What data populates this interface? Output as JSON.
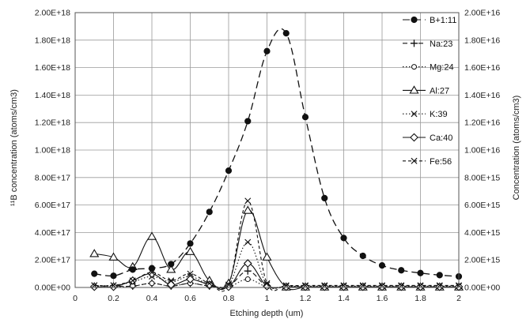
{
  "chart_data": {
    "type": "line",
    "xlabel": "Etching depth (um)",
    "ylabel_left": "¹¹B concentration (atoms/cm3)",
    "ylabel_right": "Concentration (atoms/cm3)",
    "xlim": [
      0,
      2
    ],
    "x_ticks": [
      "0",
      "0.2",
      "0.4",
      "0.6",
      "0.8",
      "1",
      "1.2",
      "1.4",
      "1.6",
      "1.8",
      "2"
    ],
    "ylim_left": [
      0,
      2e+18
    ],
    "ylim_right": [
      0,
      2e+16
    ],
    "y_ticks_left": [
      "0.00E+00",
      "2.00E+17",
      "4.00E+17",
      "6.00E+17",
      "8.00E+17",
      "1.00E+18",
      "1.20E+18",
      "1.40E+18",
      "1.60E+18",
      "1.80E+18",
      "2.00E+18"
    ],
    "y_ticks_right": [
      "0.00E+00",
      "2.00E+15",
      "4.00E+15",
      "6.00E+15",
      "8.00E+15",
      "1.00E+16",
      "1.20E+16",
      "1.40E+16",
      "1.60E+16",
      "1.80E+16",
      "2.00E+16"
    ],
    "grid": "vertical and horizontal",
    "legend_position": "right, inside plot",
    "series": [
      {
        "name": "B+1:11",
        "axis": "left",
        "marker": "filled-circle",
        "line": "long-dash",
        "x": [
          0.1,
          0.2,
          0.3,
          0.4,
          0.5,
          0.6,
          0.7,
          0.8,
          0.9,
          1.0,
          1.1,
          1.2,
          1.3,
          1.4,
          1.5,
          1.6,
          1.7,
          1.8,
          1.9,
          2.0
        ],
        "y": [
          1e+17,
          8.5e+16,
          1.3e+17,
          1.4e+17,
          1.7e+17,
          3.2e+17,
          5.5e+17,
          8.5e+17,
          1.21e+18,
          1.72e+18,
          1.85e+18,
          1.24e+18,
          6.5e+17,
          3.6e+17,
          2.3e+17,
          1.6e+17,
          1.25e+17,
          1.05e+17,
          9e+16,
          8e+16
        ]
      },
      {
        "name": "Na:23",
        "axis": "right",
        "marker": "plus",
        "line": "dash",
        "x": [
          0.1,
          0.2,
          0.3,
          0.4,
          0.5,
          0.6,
          0.7,
          0.8,
          0.9,
          1.0,
          1.1,
          1.2,
          1.3,
          1.4,
          1.5,
          1.6,
          1.7,
          1.8,
          1.9,
          2.0
        ],
        "y": [
          100000000000000.0,
          100000000000000.0,
          100000000000000.0,
          300000000000000.0,
          100000000000000.0,
          300000000000000.0,
          100000000000000.0,
          100000000000000.0,
          1200000000000000.0,
          100000000000000.0,
          50000000000000.0,
          50000000000000.0,
          50000000000000.0,
          50000000000000.0,
          50000000000000.0,
          50000000000000.0,
          50000000000000.0,
          50000000000000.0,
          50000000000000.0,
          50000000000000.0
        ]
      },
      {
        "name": "Mg:24",
        "axis": "right",
        "marker": "open-circle",
        "line": "dotted",
        "x": [
          0.1,
          0.2,
          0.3,
          0.4,
          0.5,
          0.6,
          0.7,
          0.8,
          0.9,
          1.0,
          1.1,
          1.2,
          1.3,
          1.4,
          1.5,
          1.6,
          1.7,
          1.8,
          1.9,
          2.0
        ],
        "y": [
          50000000000000.0,
          50000000000000.0,
          100000000000000.0,
          300000000000000.0,
          100000000000000.0,
          300000000000000.0,
          100000000000000.0,
          50000000000000.0,
          600000000000000.0,
          50000000000000.0,
          30000000000000.0,
          30000000000000.0,
          30000000000000.0,
          30000000000000.0,
          30000000000000.0,
          30000000000000.0,
          30000000000000.0,
          30000000000000.0,
          30000000000000.0,
          30000000000000.0
        ]
      },
      {
        "name": "Al:27",
        "axis": "right",
        "marker": "open-triangle",
        "line": "solid",
        "x": [
          0.1,
          0.2,
          0.3,
          0.4,
          0.5,
          0.6,
          0.7,
          0.8,
          0.9,
          1.0,
          1.1,
          1.2,
          1.3,
          1.4,
          1.5,
          1.6,
          1.7,
          1.8,
          1.9,
          2.0
        ],
        "y": [
          2450000000000000.0,
          2200000000000000.0,
          1500000000000000.0,
          3700000000000000.0,
          1300000000000000.0,
          2600000000000000.0,
          500000000000000.0,
          300000000000000.0,
          5600000000000000.0,
          2200000000000000.0,
          20000000000000.0,
          20000000000000.0,
          20000000000000.0,
          20000000000000.0,
          20000000000000.0,
          20000000000000.0,
          20000000000000.0,
          20000000000000.0,
          20000000000000.0,
          20000000000000.0
        ]
      },
      {
        "name": "K:39",
        "axis": "right",
        "marker": "x",
        "line": "dotted",
        "x": [
          0.1,
          0.2,
          0.3,
          0.4,
          0.5,
          0.6,
          0.7,
          0.8,
          0.9,
          1.0,
          1.1,
          1.2,
          1.3,
          1.4,
          1.5,
          1.6,
          1.7,
          1.8,
          1.9,
          2.0
        ],
        "y": [
          150000000000000.0,
          150000000000000.0,
          400000000000000.0,
          800000000000000.0,
          400000000000000.0,
          800000000000000.0,
          200000000000000.0,
          150000000000000.0,
          3300000000000000.0,
          200000000000000.0,
          100000000000000.0,
          100000000000000.0,
          100000000000000.0,
          100000000000000.0,
          100000000000000.0,
          100000000000000.0,
          100000000000000.0,
          100000000000000.0,
          100000000000000.0,
          100000000000000.0
        ]
      },
      {
        "name": "Ca:40",
        "axis": "right",
        "marker": "open-diamond",
        "line": "solid",
        "x": [
          0.1,
          0.2,
          0.3,
          0.4,
          0.5,
          0.6,
          0.7,
          0.8,
          0.9,
          1.0,
          1.1,
          1.2,
          1.3,
          1.4,
          1.5,
          1.6,
          1.7,
          1.8,
          1.9,
          2.0
        ],
        "y": [
          50000000000000.0,
          50000000000000.0,
          500000000000000.0,
          1000000000000000.0,
          200000000000000.0,
          600000000000000.0,
          200000000000000.0,
          50000000000000.0,
          1750000000000000.0,
          100000000000000.0,
          50000000000000.0,
          50000000000000.0,
          50000000000000.0,
          50000000000000.0,
          50000000000000.0,
          50000000000000.0,
          50000000000000.0,
          50000000000000.0,
          50000000000000.0,
          50000000000000.0
        ]
      },
      {
        "name": "Fe:56",
        "axis": "right",
        "marker": "x",
        "line": "short-dash",
        "x": [
          0.1,
          0.2,
          0.3,
          0.4,
          0.5,
          0.6,
          0.7,
          0.8,
          0.9,
          1.0,
          1.1,
          1.2,
          1.3,
          1.4,
          1.5,
          1.6,
          1.7,
          1.8,
          1.9,
          2.0
        ],
        "y": [
          150000000000000.0,
          150000000000000.0,
          500000000000000.0,
          1100000000000000.0,
          500000000000000.0,
          1000000000000000.0,
          300000000000000.0,
          200000000000000.0,
          6300000000000000.0,
          300000000000000.0,
          150000000000000.0,
          150000000000000.0,
          150000000000000.0,
          150000000000000.0,
          150000000000000.0,
          150000000000000.0,
          150000000000000.0,
          150000000000000.0,
          150000000000000.0,
          150000000000000.0
        ]
      }
    ]
  }
}
